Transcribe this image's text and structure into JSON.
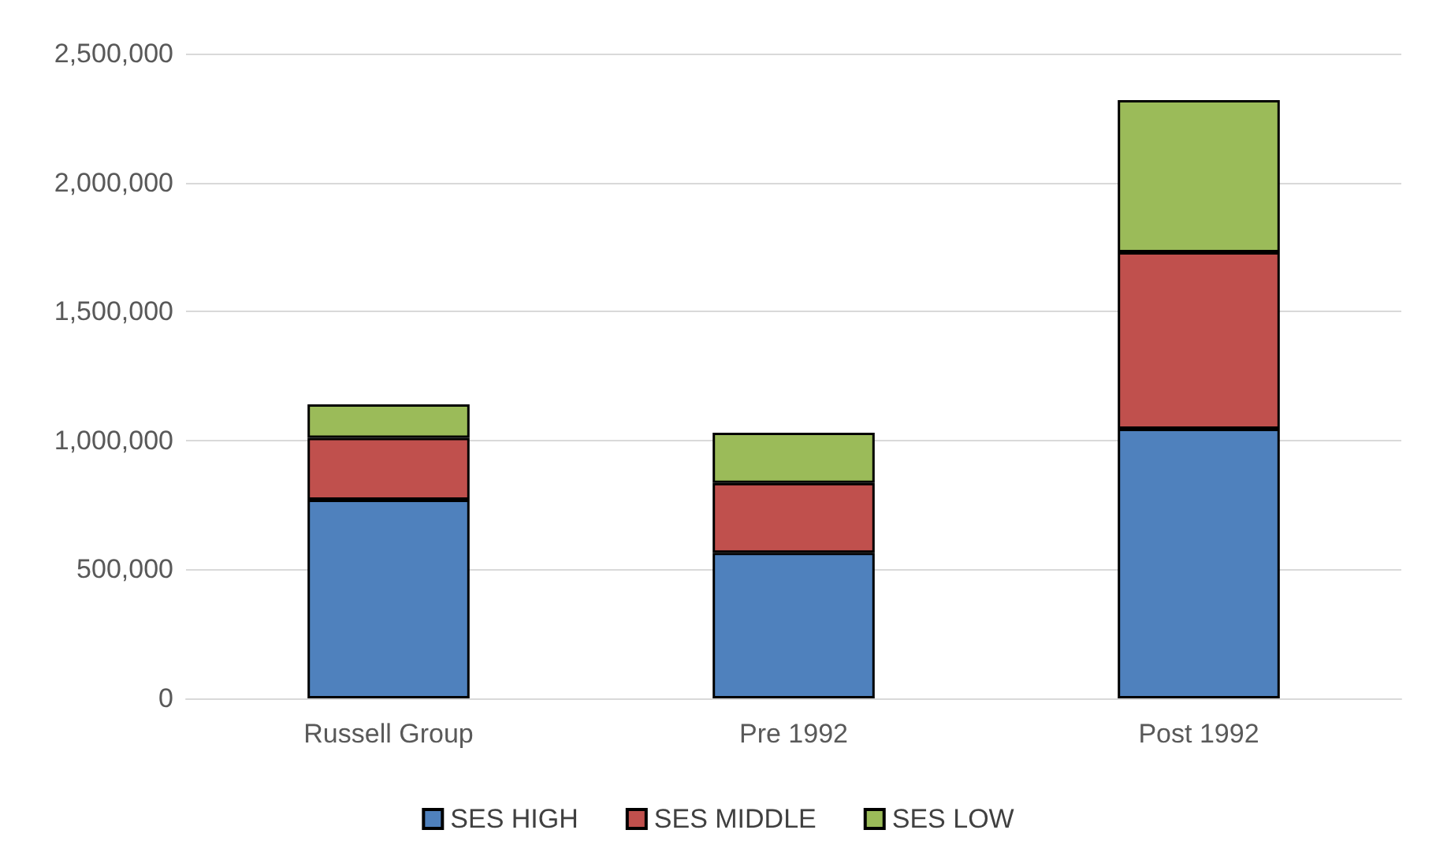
{
  "chart_data": {
    "type": "bar",
    "stacked": true,
    "categories": [
      "Russell Group",
      "Pre 1992",
      "Post 1992"
    ],
    "series": [
      {
        "name": "SES HIGH",
        "color": "#4f81bd",
        "values": [
          770000,
          565000,
          1045000
        ]
      },
      {
        "name": "SES MIDDLE",
        "color": "#c0504d",
        "values": [
          240000,
          270000,
          685000
        ]
      },
      {
        "name": "SES LOW",
        "color": "#9bbb59",
        "values": [
          130000,
          195000,
          590000
        ]
      }
    ],
    "ylim": [
      0,
      2500000
    ],
    "yticks": [
      0,
      {
        "value": 500000,
        "label": "500,000"
      },
      {
        "value": 1000000,
        "label": "1,000,000"
      },
      {
        "value": 1500000,
        "label": "1,500,000"
      },
      {
        "value": 2000000,
        "label": "2,000,000"
      },
      {
        "value": 2500000,
        "label": "2,500,000"
      }
    ],
    "grid": "y",
    "legend": "bottom"
  }
}
